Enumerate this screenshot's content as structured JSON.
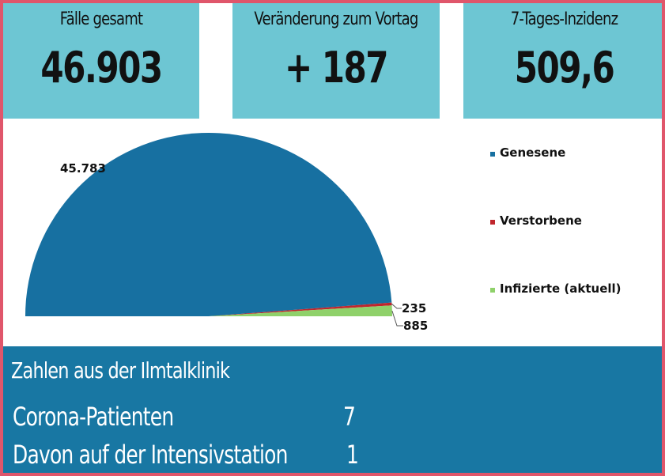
{
  "header": {
    "cards": [
      {
        "label": "Fälle gesamt",
        "value": "46.903"
      },
      {
        "label": "Veränderung zum Vortag",
        "value": "+ 187"
      },
      {
        "label": "7-Tages-Inzidenz",
        "value": "509,6"
      }
    ]
  },
  "chart_data": {
    "type": "pie",
    "title": "",
    "series": [
      {
        "name": "Genesene",
        "value": 45783,
        "label": "45.783",
        "color": "#1770a1"
      },
      {
        "name": "Verstorbene",
        "value": 235,
        "label": "235",
        "color": "#c0262d"
      },
      {
        "name": "Infizierte (aktuell)",
        "value": 885,
        "label": "885",
        "color": "#8fd16a"
      }
    ],
    "legend": "right",
    "shape": "semicircle"
  },
  "clinic": {
    "title": "Zahlen aus der Ilmtalklinik",
    "rows": [
      {
        "label": "Corona-Patienten",
        "value": "7"
      },
      {
        "label": "Davon auf der Intensivstation",
        "value": "1"
      }
    ]
  }
}
